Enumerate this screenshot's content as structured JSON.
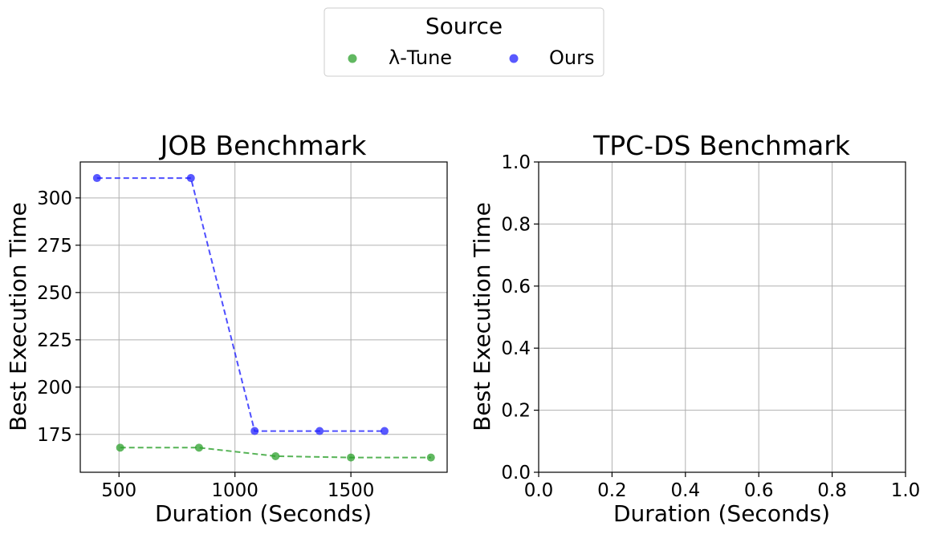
{
  "legend": {
    "title": "Source",
    "entries": [
      {
        "label": "λ-Tune",
        "color": "#2ca02c"
      },
      {
        "label": "Ours",
        "color": "#2222ff"
      }
    ]
  },
  "chart_data": [
    {
      "type": "line",
      "title": "JOB Benchmark",
      "xlabel": "Duration (Seconds)",
      "ylabel": "Best Execution Time",
      "xlim": [
        333,
        1915
      ],
      "ylim": [
        155,
        319
      ],
      "xticks": [
        "500",
        "1000",
        "1500"
      ],
      "xtick_values": [
        500,
        1000,
        1500
      ],
      "yticks": [
        "175",
        "200",
        "225",
        "250",
        "275",
        "300"
      ],
      "ytick_values": [
        175,
        200,
        225,
        250,
        275,
        300
      ],
      "grid": true,
      "series": [
        {
          "name": "λ-Tune",
          "color": "#2ca02c",
          "x": [
            505,
            845,
            1175,
            1500,
            1845
          ],
          "y": [
            168,
            168,
            163.5,
            162.8,
            162.8
          ]
        },
        {
          "name": "Ours",
          "color": "#2222ff",
          "x": [
            405,
            810,
            1085,
            1365,
            1645
          ],
          "y": [
            310.5,
            310.5,
            176.8,
            176.8,
            176.8
          ]
        }
      ]
    },
    {
      "type": "line",
      "title": "TPC-DS Benchmark",
      "xlabel": "Duration (Seconds)",
      "ylabel": "Best Execution Time",
      "xlim": [
        0,
        1
      ],
      "ylim": [
        0,
        1
      ],
      "xticks": [
        "0.0",
        "0.2",
        "0.4",
        "0.6",
        "0.8",
        "1.0"
      ],
      "xtick_values": [
        0,
        0.2,
        0.4,
        0.6,
        0.8,
        1.0
      ],
      "yticks": [
        "0.0",
        "0.2",
        "0.4",
        "0.6",
        "0.8",
        "1.0"
      ],
      "ytick_values": [
        0,
        0.2,
        0.4,
        0.6,
        0.8,
        1.0
      ],
      "grid": true,
      "series": []
    }
  ]
}
